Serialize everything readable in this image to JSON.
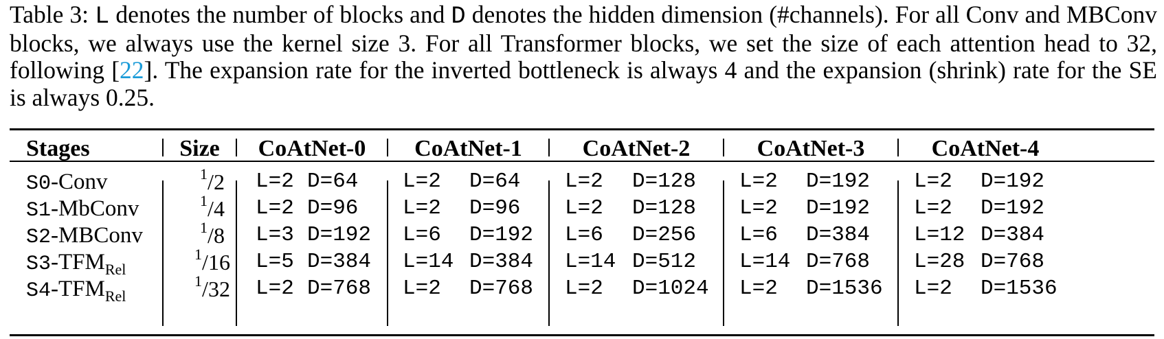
{
  "caption": {
    "label": "Table 3:",
    "var_L": "L",
    "text_1": " denotes the number of blocks and ",
    "var_D": "D",
    "text_2": " denotes the hidden dimension (#channels). For all Conv and MBConv blocks, we always use the kernel size 3. For all Transformer blocks, we set the size of each attention head to 32, following [",
    "citation": "22",
    "text_3": "]. The expansion rate for the inverted bottleneck is always 4 and the expansion (shrink) rate for the SE is always 0.25."
  },
  "table": {
    "headers": [
      "Stages",
      "Size",
      "CoAtNet-0",
      "CoAtNet-1",
      "CoAtNet-2",
      "CoAtNet-3",
      "CoAtNet-4"
    ],
    "rows": [
      {
        "stage_prefix": "S0",
        "stage_name": "-Conv",
        "stage_sub": "",
        "size_num": "1",
        "size_den": "2",
        "cells": [
          [
            "L=2",
            "D=64"
          ],
          [
            "L=2",
            "D=64"
          ],
          [
            "L=2",
            "D=128"
          ],
          [
            "L=2",
            "D=192"
          ],
          [
            "L=2",
            "D=192"
          ]
        ]
      },
      {
        "stage_prefix": "S1",
        "stage_name": "-MbConv",
        "stage_sub": "",
        "size_num": "1",
        "size_den": "4",
        "cells": [
          [
            "L=2",
            "D=96"
          ],
          [
            "L=2",
            "D=96"
          ],
          [
            "L=2",
            "D=128"
          ],
          [
            "L=2",
            "D=192"
          ],
          [
            "L=2",
            "D=192"
          ]
        ]
      },
      {
        "stage_prefix": "S2",
        "stage_name": "-MBConv",
        "stage_sub": "",
        "size_num": "1",
        "size_den": "8",
        "cells": [
          [
            "L=3",
            "D=192"
          ],
          [
            "L=6",
            "D=192"
          ],
          [
            "L=6",
            "D=256"
          ],
          [
            "L=6",
            "D=384"
          ],
          [
            "L=12",
            "D=384"
          ]
        ]
      },
      {
        "stage_prefix": "S3",
        "stage_name": "-TFM",
        "stage_sub": "Rel",
        "size_num": "1",
        "size_den": "16",
        "cells": [
          [
            "L=5",
            "D=384"
          ],
          [
            "L=14",
            "D=384"
          ],
          [
            "L=14",
            "D=512"
          ],
          [
            "L=14",
            "D=768"
          ],
          [
            "L=28",
            "D=768"
          ]
        ]
      },
      {
        "stage_prefix": "S4",
        "stage_name": "-TFM",
        "stage_sub": "Rel",
        "size_num": "1",
        "size_den": "32",
        "cells": [
          [
            "L=2",
            "D=768"
          ],
          [
            "L=2",
            "D=768"
          ],
          [
            "L=2",
            "D=1024"
          ],
          [
            "L=2",
            "D=1536"
          ],
          [
            "L=2",
            "D=1536"
          ]
        ]
      }
    ]
  }
}
